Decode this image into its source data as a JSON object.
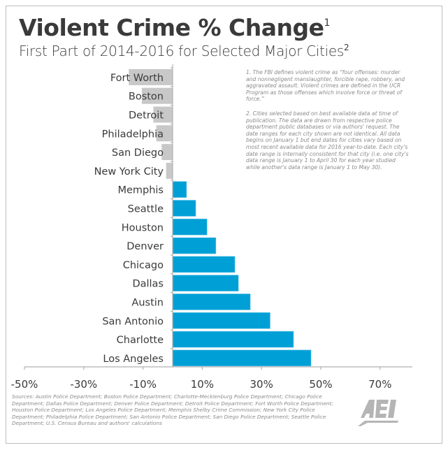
{
  "title": "Violent Crime % Change",
  "title_sup": "1",
  "subtitle": "First Part of 2014-2016 for Selected Major Cities",
  "subtitle_sup": "2",
  "notes": [
    "1. The FBI defines violent crime as “four offenses: murder and nonnegligent manslaughter, forcible rape, robbery, and aggravated assault. Violent crimes are defined in the UCR Program as those offenses which involve force or threat of force.”",
    "2. Cities selected based on best available data at time of publication. The data are drawn from respective police department public databases or via authors' request. The date ranges for each city shown are not identical. All data begins on January 1 but end dates for cities vary based on most recent available data for 2016 year-to-date. Each city's date range is internally consistent for that city (i.e. one city's data range is January 1 to April 30 for each year studied while another's data range is January 1 to May 30)."
  ],
  "sources": "Sources: Austin Police Department; Boston Police Department; Charlotte-Mecklenburg Police Department; Chicago Police Department; Dallas Police Department; Denver Police Department; Detroit Police Department; Fort Worth Police Department; Houston Police Department; Los Angeles Police Department; Memphis Shelby Crime Commission; New York City Police Department; Philadelphia Police Department; San Antonio Police Department; San Diego Police Department; Seattle Police Department; U.S. Census Bureau and authors' calculations",
  "logo_text": "AEI",
  "colors": {
    "negative": "#c8c8c8",
    "positive": "#00a0d6",
    "text": "#3a3a3a",
    "axis": "#b0b0b0"
  },
  "chart_data": {
    "type": "bar",
    "orientation": "horizontal",
    "categories": [
      "Fort Worth",
      "Boston",
      "Detroit",
      "Philadelphia",
      "San Diego",
      "New York City",
      "Memphis",
      "Seattle",
      "Houston",
      "Denver",
      "Chicago",
      "Dallas",
      "Austin",
      "San Antonio",
      "Charlotte",
      "Los Angeles"
    ],
    "values": [
      -14.8,
      -10.4,
      -6.5,
      -5.5,
      -3.7,
      -2.2,
      4.7,
      7.8,
      11.6,
      14.6,
      21.0,
      22.2,
      26.2,
      32.9,
      40.8,
      46.7
    ],
    "xlim": [
      -50,
      80
    ],
    "xticks": [
      -50,
      -30,
      -10,
      10,
      30,
      50,
      70
    ],
    "xtick_labels": [
      "-50%",
      "-30%",
      "-10%",
      "10%",
      "30%",
      "50%",
      "70%"
    ],
    "grid": false
  }
}
